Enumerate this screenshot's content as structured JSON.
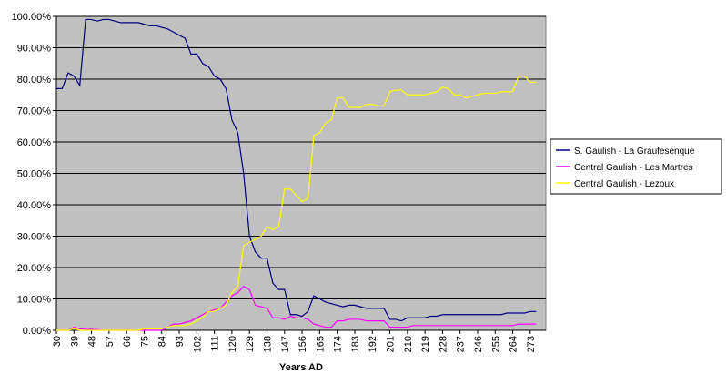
{
  "chart_data": {
    "type": "line",
    "x_label": "Years AD",
    "x": [
      30,
      33,
      36,
      39,
      42,
      45,
      48,
      51,
      54,
      57,
      60,
      63,
      66,
      69,
      72,
      75,
      78,
      81,
      84,
      87,
      90,
      93,
      96,
      99,
      102,
      105,
      108,
      111,
      114,
      117,
      120,
      123,
      126,
      129,
      132,
      135,
      138,
      141,
      144,
      147,
      150,
      153,
      156,
      159,
      162,
      165,
      168,
      171,
      174,
      177,
      180,
      183,
      186,
      189,
      192,
      195,
      198,
      201,
      204,
      207,
      210,
      213,
      216,
      219,
      222,
      225,
      228,
      231,
      234,
      237,
      240,
      243,
      246,
      249,
      252,
      255,
      258,
      261,
      264,
      267,
      270,
      273,
      276
    ],
    "xlim": [
      30,
      281
    ],
    "xticks": [
      30,
      39,
      48,
      57,
      66,
      75,
      84,
      93,
      102,
      111,
      120,
      129,
      138,
      147,
      156,
      165,
      174,
      183,
      192,
      201,
      210,
      219,
      228,
      237,
      246,
      255,
      264,
      273
    ],
    "ylim": [
      0,
      100
    ],
    "yticks": [
      {
        "value": 0,
        "label": "0.00%"
      },
      {
        "value": 10,
        "label": "10.00%"
      },
      {
        "value": 20,
        "label": "20.00%"
      },
      {
        "value": 30,
        "label": "30.00%"
      },
      {
        "value": 40,
        "label": "40.00%"
      },
      {
        "value": 50,
        "label": "50.00%"
      },
      {
        "value": 60,
        "label": "60.00%"
      },
      {
        "value": 70,
        "label": "70.00%"
      },
      {
        "value": 80,
        "label": "80.00%"
      },
      {
        "value": 90,
        "label": "90.00%"
      },
      {
        "value": 100,
        "label": "100.00%"
      }
    ],
    "grid": true,
    "legend": "right",
    "series": [
      {
        "name": "S. Gaulish - La Graufesenque",
        "color": "#000080",
        "values": [
          77,
          77,
          82,
          81,
          78,
          99,
          99,
          98.5,
          99,
          99,
          98.5,
          98,
          98,
          98,
          98,
          97.5,
          97,
          97,
          96.5,
          96,
          95,
          94,
          93,
          88,
          88,
          85,
          84,
          81,
          80,
          77,
          67,
          63,
          50,
          30,
          25,
          23,
          23,
          15,
          13,
          13,
          5,
          5,
          4.5,
          6,
          11,
          10,
          9,
          8.5,
          8,
          7.5,
          8,
          8,
          7.5,
          7,
          7,
          7,
          7,
          3.5,
          3.5,
          3,
          4,
          4,
          4,
          4,
          4.5,
          4.5,
          5,
          5,
          5,
          5,
          5,
          5,
          5,
          5,
          5,
          5,
          5,
          5.5,
          5.5,
          5.5,
          5.5,
          6,
          6
        ]
      },
      {
        "name": "Central Gaulish - Les Martres",
        "color": "#ff00ff",
        "values": [
          0,
          0,
          0,
          1,
          0.5,
          0.3,
          0.3,
          0.2,
          0,
          0,
          0,
          0,
          0,
          0,
          0,
          0,
          0,
          0,
          0,
          1,
          2,
          2,
          2.5,
          3,
          4,
          5,
          6,
          6.5,
          7,
          9,
          11,
          12,
          14,
          13,
          8,
          7.5,
          7,
          4,
          4,
          3.5,
          4.5,
          4,
          4,
          3.5,
          2,
          1.5,
          1,
          1,
          3,
          3,
          3.5,
          3.5,
          3.5,
          3,
          3,
          3,
          3,
          1,
          1,
          1,
          1,
          1.5,
          1.5,
          1.5,
          1.5,
          1.5,
          1.5,
          1.5,
          1.5,
          1.5,
          1.5,
          1.5,
          1.5,
          1.5,
          1.5,
          1.5,
          1.5,
          1.5,
          1.5,
          2,
          2,
          2,
          2
        ]
      },
      {
        "name": "Central Gaulish - Lezoux",
        "color": "#ffff00",
        "values": [
          0,
          0,
          0,
          0.5,
          0,
          0,
          0,
          0,
          0,
          0,
          0,
          0,
          0,
          0,
          0,
          0.5,
          0.5,
          0.5,
          0.5,
          1,
          1.5,
          1.5,
          1.5,
          2,
          3,
          4,
          6,
          6,
          7,
          8,
          12,
          14,
          27,
          28,
          29,
          30,
          33,
          32,
          33,
          45,
          45,
          43,
          41,
          42,
          62,
          63,
          66,
          67,
          74,
          74,
          71,
          71,
          71,
          72,
          72,
          71.5,
          71.5,
          76,
          76.5,
          76.5,
          75,
          75,
          75,
          75,
          75.5,
          76,
          77.5,
          77,
          75,
          75,
          74,
          74.5,
          75,
          75.5,
          75.5,
          75.5,
          76,
          76,
          76,
          81,
          81,
          79,
          79
        ]
      }
    ]
  }
}
